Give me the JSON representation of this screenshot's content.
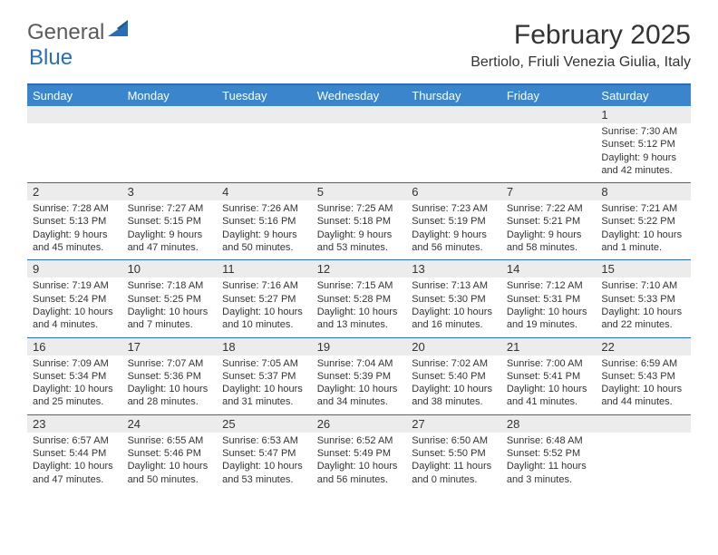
{
  "brand": {
    "logo_general": "General",
    "logo_blue": "Blue"
  },
  "title": "February 2025",
  "location": "Bertiolo, Friuli Venezia Giulia, Italy",
  "colors": {
    "header_band": "#3a85cc",
    "rule": "#2a6fb5",
    "daynum_bg": "#ececec",
    "text": "#333333",
    "logo_gray": "#5a5a5a",
    "logo_blue": "#2a6fb5",
    "background": "#ffffff"
  },
  "weekdays": [
    "Sunday",
    "Monday",
    "Tuesday",
    "Wednesday",
    "Thursday",
    "Friday",
    "Saturday"
  ],
  "weeks": [
    [
      {
        "num": "",
        "lines": []
      },
      {
        "num": "",
        "lines": []
      },
      {
        "num": "",
        "lines": []
      },
      {
        "num": "",
        "lines": []
      },
      {
        "num": "",
        "lines": []
      },
      {
        "num": "",
        "lines": []
      },
      {
        "num": "1",
        "lines": [
          "Sunrise: 7:30 AM",
          "Sunset: 5:12 PM",
          "Daylight: 9 hours and 42 minutes."
        ]
      }
    ],
    [
      {
        "num": "2",
        "lines": [
          "Sunrise: 7:28 AM",
          "Sunset: 5:13 PM",
          "Daylight: 9 hours and 45 minutes."
        ]
      },
      {
        "num": "3",
        "lines": [
          "Sunrise: 7:27 AM",
          "Sunset: 5:15 PM",
          "Daylight: 9 hours and 47 minutes."
        ]
      },
      {
        "num": "4",
        "lines": [
          "Sunrise: 7:26 AM",
          "Sunset: 5:16 PM",
          "Daylight: 9 hours and 50 minutes."
        ]
      },
      {
        "num": "5",
        "lines": [
          "Sunrise: 7:25 AM",
          "Sunset: 5:18 PM",
          "Daylight: 9 hours and 53 minutes."
        ]
      },
      {
        "num": "6",
        "lines": [
          "Sunrise: 7:23 AM",
          "Sunset: 5:19 PM",
          "Daylight: 9 hours and 56 minutes."
        ]
      },
      {
        "num": "7",
        "lines": [
          "Sunrise: 7:22 AM",
          "Sunset: 5:21 PM",
          "Daylight: 9 hours and 58 minutes."
        ]
      },
      {
        "num": "8",
        "lines": [
          "Sunrise: 7:21 AM",
          "Sunset: 5:22 PM",
          "Daylight: 10 hours and 1 minute."
        ]
      }
    ],
    [
      {
        "num": "9",
        "lines": [
          "Sunrise: 7:19 AM",
          "Sunset: 5:24 PM",
          "Daylight: 10 hours and 4 minutes."
        ]
      },
      {
        "num": "10",
        "lines": [
          "Sunrise: 7:18 AM",
          "Sunset: 5:25 PM",
          "Daylight: 10 hours and 7 minutes."
        ]
      },
      {
        "num": "11",
        "lines": [
          "Sunrise: 7:16 AM",
          "Sunset: 5:27 PM",
          "Daylight: 10 hours and 10 minutes."
        ]
      },
      {
        "num": "12",
        "lines": [
          "Sunrise: 7:15 AM",
          "Sunset: 5:28 PM",
          "Daylight: 10 hours and 13 minutes."
        ]
      },
      {
        "num": "13",
        "lines": [
          "Sunrise: 7:13 AM",
          "Sunset: 5:30 PM",
          "Daylight: 10 hours and 16 minutes."
        ]
      },
      {
        "num": "14",
        "lines": [
          "Sunrise: 7:12 AM",
          "Sunset: 5:31 PM",
          "Daylight: 10 hours and 19 minutes."
        ]
      },
      {
        "num": "15",
        "lines": [
          "Sunrise: 7:10 AM",
          "Sunset: 5:33 PM",
          "Daylight: 10 hours and 22 minutes."
        ]
      }
    ],
    [
      {
        "num": "16",
        "lines": [
          "Sunrise: 7:09 AM",
          "Sunset: 5:34 PM",
          "Daylight: 10 hours and 25 minutes."
        ]
      },
      {
        "num": "17",
        "lines": [
          "Sunrise: 7:07 AM",
          "Sunset: 5:36 PM",
          "Daylight: 10 hours and 28 minutes."
        ]
      },
      {
        "num": "18",
        "lines": [
          "Sunrise: 7:05 AM",
          "Sunset: 5:37 PM",
          "Daylight: 10 hours and 31 minutes."
        ]
      },
      {
        "num": "19",
        "lines": [
          "Sunrise: 7:04 AM",
          "Sunset: 5:39 PM",
          "Daylight: 10 hours and 34 minutes."
        ]
      },
      {
        "num": "20",
        "lines": [
          "Sunrise: 7:02 AM",
          "Sunset: 5:40 PM",
          "Daylight: 10 hours and 38 minutes."
        ]
      },
      {
        "num": "21",
        "lines": [
          "Sunrise: 7:00 AM",
          "Sunset: 5:41 PM",
          "Daylight: 10 hours and 41 minutes."
        ]
      },
      {
        "num": "22",
        "lines": [
          "Sunrise: 6:59 AM",
          "Sunset: 5:43 PM",
          "Daylight: 10 hours and 44 minutes."
        ]
      }
    ],
    [
      {
        "num": "23",
        "lines": [
          "Sunrise: 6:57 AM",
          "Sunset: 5:44 PM",
          "Daylight: 10 hours and 47 minutes."
        ]
      },
      {
        "num": "24",
        "lines": [
          "Sunrise: 6:55 AM",
          "Sunset: 5:46 PM",
          "Daylight: 10 hours and 50 minutes."
        ]
      },
      {
        "num": "25",
        "lines": [
          "Sunrise: 6:53 AM",
          "Sunset: 5:47 PM",
          "Daylight: 10 hours and 53 minutes."
        ]
      },
      {
        "num": "26",
        "lines": [
          "Sunrise: 6:52 AM",
          "Sunset: 5:49 PM",
          "Daylight: 10 hours and 56 minutes."
        ]
      },
      {
        "num": "27",
        "lines": [
          "Sunrise: 6:50 AM",
          "Sunset: 5:50 PM",
          "Daylight: 11 hours and 0 minutes."
        ]
      },
      {
        "num": "28",
        "lines": [
          "Sunrise: 6:48 AM",
          "Sunset: 5:52 PM",
          "Daylight: 11 hours and 3 minutes."
        ]
      },
      {
        "num": "",
        "lines": []
      }
    ]
  ]
}
